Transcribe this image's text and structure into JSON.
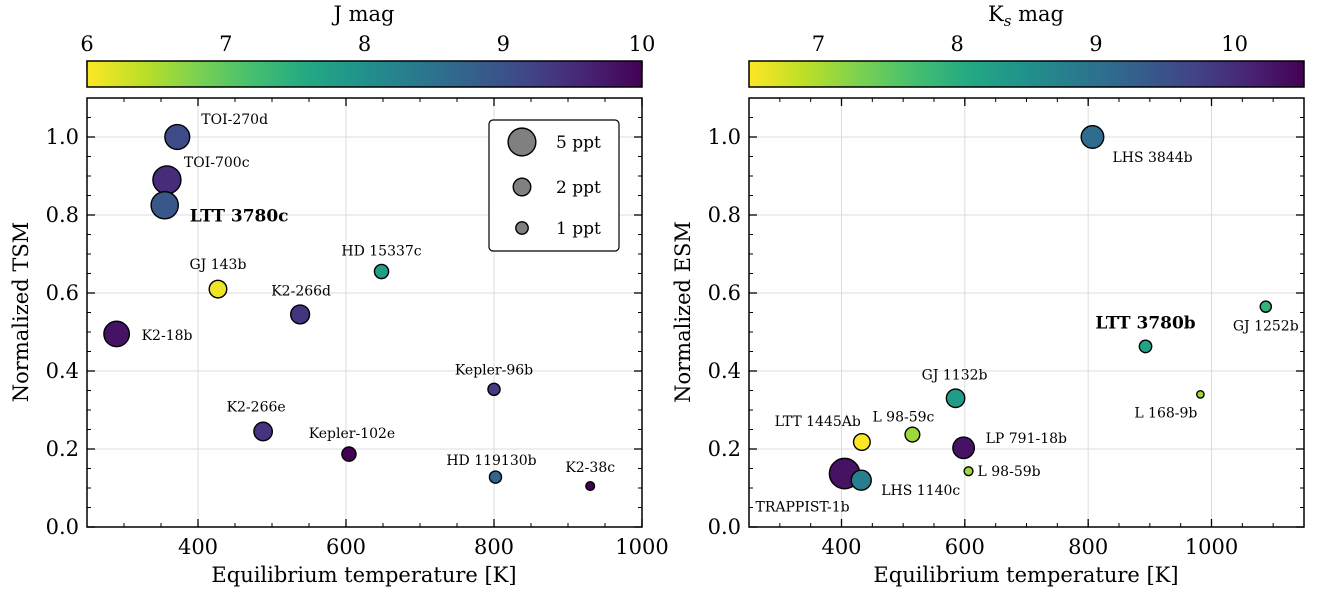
{
  "chart_data": [
    {
      "type": "scatter",
      "xlabel": "Equilibrium temperature [K]",
      "ylabel": "Normalized TSM",
      "xlim": [
        250,
        1000
      ],
      "ylim": [
        0,
        1.1
      ],
      "xticks": [
        400,
        600,
        800,
        1000
      ],
      "yticks": [
        0.0,
        0.2,
        0.4,
        0.6,
        0.8,
        1.0
      ],
      "grid": true,
      "colorbar": {
        "label": "J mag",
        "min": 6,
        "max": 10,
        "ticks": [
          6,
          7,
          8,
          9,
          10
        ],
        "cmap": "viridis_r",
        "position": "top"
      },
      "size_legend": {
        "placement": "top-right",
        "entries": [
          {
            "label": "5 ppt",
            "depth": 5
          },
          {
            "label": "2 ppt",
            "depth": 2
          },
          {
            "label": "1 ppt",
            "depth": 1
          }
        ]
      },
      "points": [
        {
          "name": "TOI-270d",
          "x": 372,
          "y": 1.0,
          "mag": 9.1,
          "depth": 4.0
        },
        {
          "name": "TOI-700c",
          "x": 358,
          "y": 0.89,
          "mag": 9.5,
          "depth": 5.1
        },
        {
          "name": "LTT 3780c",
          "x": 355,
          "y": 0.825,
          "mag": 8.9,
          "depth": 4.8,
          "bold": true
        },
        {
          "name": "HD 15337c",
          "x": 648,
          "y": 0.655,
          "mag": 7.8,
          "depth": 1.3
        },
        {
          "name": "GJ 143b",
          "x": 427,
          "y": 0.61,
          "mag": 6.1,
          "depth": 2.0
        },
        {
          "name": "K2-266d",
          "x": 538,
          "y": 0.545,
          "mag": 9.4,
          "depth": 2.3
        },
        {
          "name": "K2-18b",
          "x": 290,
          "y": 0.495,
          "mag": 9.8,
          "depth": 4.2
        },
        {
          "name": "Kepler-96b",
          "x": 800,
          "y": 0.353,
          "mag": 9.3,
          "depth": 0.95
        },
        {
          "name": "K2-266e",
          "x": 488,
          "y": 0.245,
          "mag": 9.4,
          "depth": 2.2
        },
        {
          "name": "Kepler-102e",
          "x": 604,
          "y": 0.187,
          "mag": 10.0,
          "depth": 1.3
        },
        {
          "name": "HD 119130b",
          "x": 802,
          "y": 0.128,
          "mag": 8.7,
          "depth": 0.95
        },
        {
          "name": "K2-38c",
          "x": 930,
          "y": 0.105,
          "mag": 10.0,
          "depth": 0.5
        }
      ]
    },
    {
      "type": "scatter",
      "xlabel": "Equilibrium temperature [K]",
      "ylabel": "Normalized ESM",
      "xlim": [
        250,
        1150
      ],
      "ylim": [
        0,
        1.1
      ],
      "xticks": [
        400,
        600,
        800,
        1000
      ],
      "yticks": [
        0.0,
        0.2,
        0.4,
        0.6,
        0.8,
        1.0
      ],
      "grid": true,
      "colorbar": {
        "label": "K",
        "label_sub": "s",
        "label_rest": " mag",
        "min": 6.5,
        "max": 10.5,
        "ticks": [
          7,
          8,
          9,
          10
        ],
        "cmap": "viridis_r",
        "position": "top"
      },
      "points": [
        {
          "name": "LHS 3844b",
          "x": 807,
          "y": 1.0,
          "mag": 9.1,
          "depth": 3.3
        },
        {
          "name": "GJ 1252b",
          "x": 1088,
          "y": 0.565,
          "mag": 7.9,
          "depth": 0.8
        },
        {
          "name": "LTT 3780b",
          "x": 893,
          "y": 0.463,
          "mag": 8.2,
          "depth": 1.0,
          "bold": true
        },
        {
          "name": "L 168-9b",
          "x": 982,
          "y": 0.34,
          "mag": 7.1,
          "depth": 0.35
        },
        {
          "name": "GJ 1132b",
          "x": 585,
          "y": 0.33,
          "mag": 8.3,
          "depth": 2.2
        },
        {
          "name": "L 98-59c",
          "x": 515,
          "y": 0.237,
          "mag": 7.1,
          "depth": 1.4
        },
        {
          "name": "LTT 1445Ab",
          "x": 433,
          "y": 0.218,
          "mag": 6.5,
          "depth": 1.8
        },
        {
          "name": "LP 791-18b",
          "x": 598,
          "y": 0.203,
          "mag": 10.3,
          "depth": 3.0
        },
        {
          "name": "L 98-59b",
          "x": 606,
          "y": 0.143,
          "mag": 7.1,
          "depth": 0.5
        },
        {
          "name": "TRAPPIST-1b",
          "x": 405,
          "y": 0.137,
          "mag": 10.3,
          "depth": 6.0
        },
        {
          "name": "LHS 1140c",
          "x": 432,
          "y": 0.12,
          "mag": 8.8,
          "depth": 2.6
        }
      ]
    }
  ]
}
